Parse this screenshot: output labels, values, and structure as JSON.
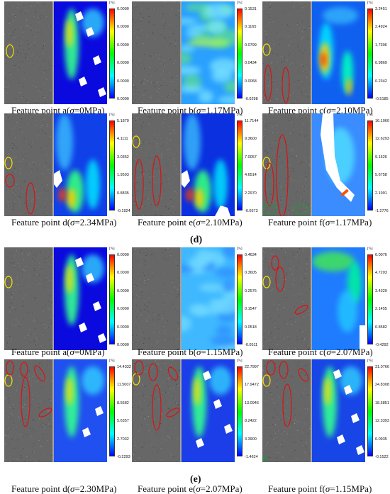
{
  "sections": [
    {
      "label": "(d)",
      "panels": [
        {
          "prefix": "Feature point a(",
          "sigma": "σ",
          "suffix": "=0MPa)",
          "unit": "[%]",
          "ticks": [
            "0.0000",
            "0.0000",
            "0.0000",
            "0.0000",
            "0.0000",
            "0.0000"
          ],
          "map": "blue"
        },
        {
          "prefix": "Feature point b(",
          "sigma": "σ",
          "suffix": "=1.17MPa)",
          "unit": "[%]",
          "ticks": [
            "0.1531",
            "0.1165",
            "0.0799",
            "0.0434",
            "0.0068",
            "-0.0298"
          ],
          "map": "noisy"
        },
        {
          "prefix": "Feature point c(",
          "sigma": "σ",
          "suffix": "=2.10MPa)",
          "unit": "[%]",
          "ticks": [
            "3.2451",
            "2.4924",
            "1.7396",
            "0.9869",
            "0.2342",
            "-0.5185"
          ],
          "map": "hot"
        },
        {
          "prefix": "Feature point d(",
          "sigma": "σ",
          "suffix": "=2.34MPa)",
          "unit": "[%]",
          "ticks": [
            "5.1870",
            "4.1111",
            "3.0352",
            "1.9593",
            "0.8835",
            "-0.1924"
          ],
          "map": "crack"
        },
        {
          "prefix": "Feature point e(",
          "sigma": "σ",
          "suffix": "=2.10MPa)",
          "unit": "[%]",
          "ticks": [
            "11.7144",
            "9.3600",
            "7.0057",
            "4.6514",
            "2.2970",
            "-0.0573"
          ],
          "map": "crack2"
        },
        {
          "prefix": "Feature point f(",
          "sigma": "σ",
          "suffix": "=1.17MPa)",
          "unit": "[%]",
          "ticks": [
            "16.1060",
            "12.6293",
            "9.1526",
            "5.6758",
            "2.1991",
            "-1.2776"
          ],
          "map": "broken"
        }
      ]
    },
    {
      "label": "(e)",
      "panels": [
        {
          "prefix": "Feature point a(",
          "sigma": "σ",
          "suffix": "=0MPa)",
          "unit": "[%]",
          "ticks": [
            "0.0000",
            "0.0000",
            "0.0000",
            "0.0000",
            "0.0000",
            "0.0000"
          ],
          "map": "blue"
        },
        {
          "prefix": "Feature point b(",
          "sigma": "σ",
          "suffix": "=1.15MPa)",
          "unit": "[%]",
          "ticks": [
            "0.4634",
            "0.3605",
            "0.2576",
            "0.1547",
            "0.0518",
            "-0.0511"
          ],
          "map": "cyan"
        },
        {
          "prefix": "Feature point c(",
          "sigma": "σ",
          "suffix": "=2.07MPa)",
          "unit": "[%]",
          "ticks": [
            "6.0076",
            "4.7203",
            "3.4329",
            "2.1455",
            "0.8582",
            "-0.4292"
          ],
          "map": "green"
        },
        {
          "prefix": "Feature point d(",
          "sigma": "σ",
          "suffix": "=2.30MPa)",
          "unit": "[%]",
          "ticks": [
            "14.4332",
            "11.5007",
            "8.5682",
            "5.6357",
            "2.7032",
            "-0.2293"
          ],
          "map": "band"
        },
        {
          "prefix": "Feature point e(",
          "sigma": "σ",
          "suffix": "=2.07MPa)",
          "unit": "[%]",
          "ticks": [
            "22.7997",
            "17.9472",
            "13.0946",
            "8.2422",
            "3.3900",
            "-1.4624"
          ],
          "map": "band2"
        },
        {
          "prefix": "Feature point f(",
          "sigma": "σ",
          "suffix": "=1.15MPa)",
          "unit": "[%]",
          "ticks": [
            "31.0766",
            "24.8308",
            "18.5851",
            "12.3393",
            "6.0935",
            "-0.1522"
          ],
          "map": "band3"
        }
      ]
    }
  ],
  "colors": {
    "scale_top": "#ff0000",
    "scale_mid_high": "#ffff00",
    "scale_mid": "#00ff00",
    "scale_mid_low": "#00ffff",
    "scale_bottom": "#0000ff",
    "marker_yellow": "#f4e000",
    "marker_red": "#dd1111",
    "marker_green": "#1a9a3a"
  }
}
